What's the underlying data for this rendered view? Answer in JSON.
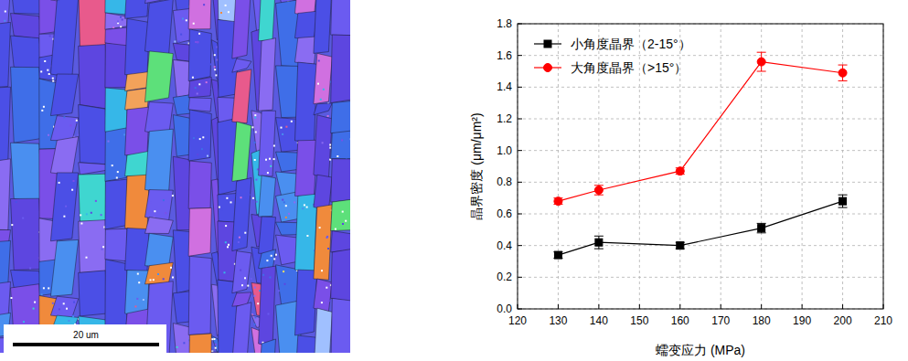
{
  "image": {
    "scale_bar_label": "20 um"
  },
  "chart_data": {
    "type": "line",
    "xlabel": "蠕变应力 (MPa)",
    "ylabel": "晶界密度 (μm/μm²)",
    "x": [
      130,
      140,
      160,
      180,
      200
    ],
    "series": [
      {
        "name": "小角度晶界（2-15°）",
        "color": "#000000",
        "marker": "square",
        "line_style": "solid",
        "values": [
          0.34,
          0.42,
          0.4,
          0.51,
          0.68
        ],
        "errors": [
          0.02,
          0.04,
          0.02,
          0.03,
          0.04
        ]
      },
      {
        "name": "大角度晶界（>15°）",
        "color": "#ff0000",
        "marker": "circle",
        "line_style": "solid",
        "values": [
          0.68,
          0.75,
          0.87,
          1.56,
          1.49
        ],
        "errors": [
          0.02,
          0.03,
          0.02,
          0.06,
          0.05
        ]
      }
    ],
    "xlim": [
      120,
      210
    ],
    "xticks": [
      120,
      130,
      140,
      150,
      160,
      170,
      180,
      190,
      200,
      210
    ],
    "ylim": [
      0,
      1.8
    ],
    "yticks": [
      {
        "value": 0,
        "label": "0.0"
      },
      0.2,
      0.4,
      0.6,
      0.8,
      {
        "value": 1,
        "label": "1.0"
      },
      1.2,
      1.4,
      1.6,
      1.8
    ],
    "grid": true,
    "legend": "upper left"
  }
}
